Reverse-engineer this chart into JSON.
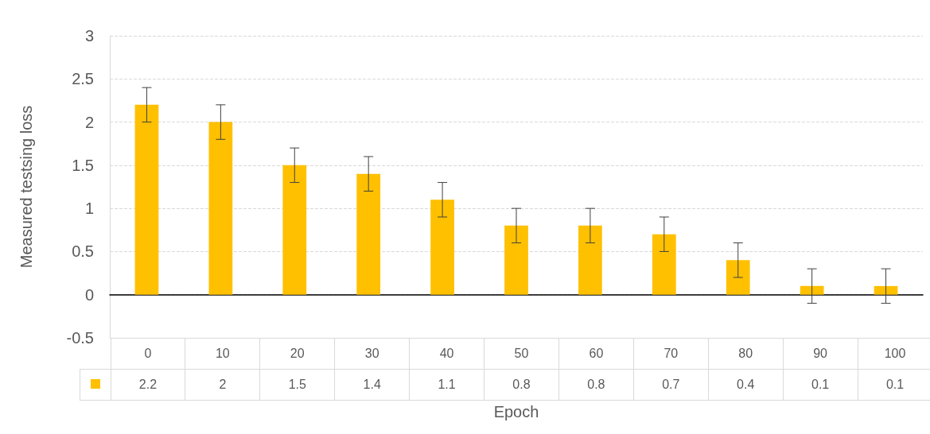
{
  "chart_data": {
    "type": "bar",
    "xlabel": "Epoch",
    "ylabel": "Measured testsing loss",
    "categories": [
      "0",
      "10",
      "20",
      "30",
      "40",
      "50",
      "60",
      "70",
      "80",
      "90",
      "100"
    ],
    "series": [
      {
        "color": "#ffc000",
        "values": [
          2.2,
          2,
          1.5,
          1.4,
          1.1,
          0.8,
          0.8,
          0.7,
          0.4,
          0.1,
          0.1
        ],
        "errors": [
          0.2,
          0.2,
          0.2,
          0.2,
          0.2,
          0.2,
          0.2,
          0.2,
          0.2,
          0.2,
          0.2
        ]
      }
    ],
    "ylim": [
      -0.5,
      3
    ],
    "yticks": [
      -0.5,
      0,
      0.5,
      1,
      1.5,
      2,
      2.5,
      3
    ],
    "grid": "y",
    "data_labels": true
  }
}
